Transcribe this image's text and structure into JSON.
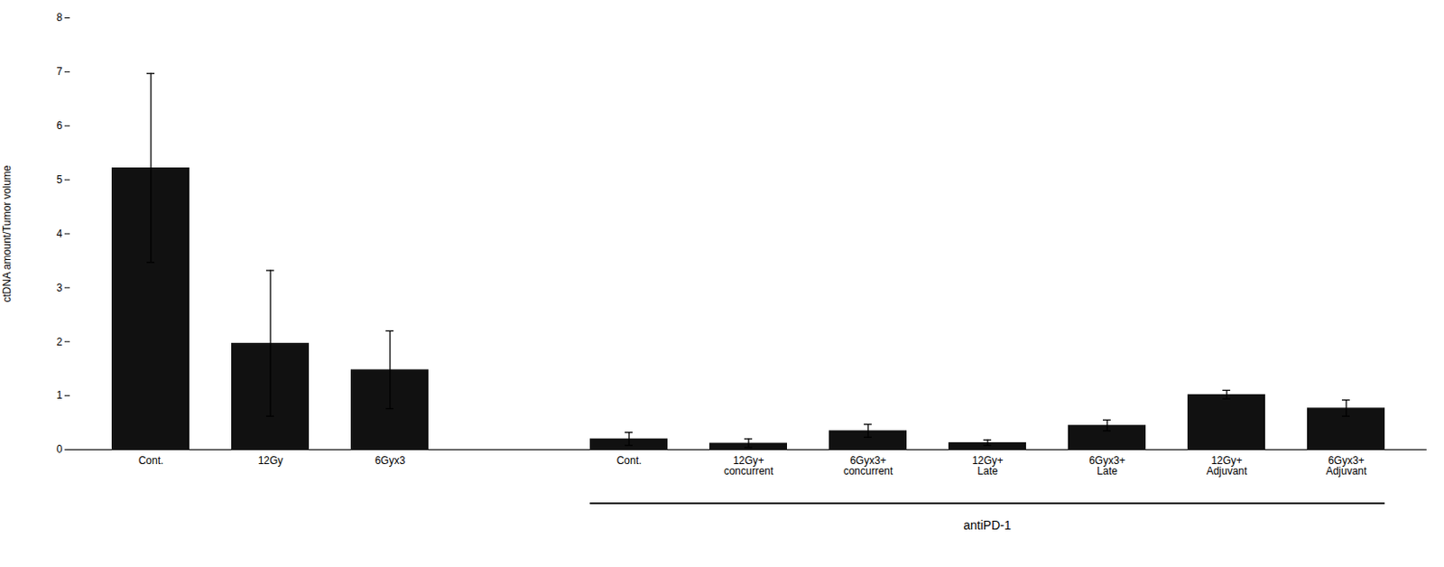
{
  "chart_data": {
    "type": "bar",
    "categories": [
      "Cont.",
      "12Gy",
      "6Gyx3",
      "Cont.",
      "12Gy+\nconcurrent",
      "6Gyx3+\nconcurrent",
      "12Gy+\nLate",
      "6Gyx3+\nLate",
      "12Gy+\nAdjuvant",
      "6Gyx3+\nAdjuvant"
    ],
    "values": [
      5.22,
      1.97,
      1.48,
      0.2,
      0.12,
      0.35,
      0.13,
      0.45,
      1.02,
      0.77
    ],
    "errors": [
      1.75,
      1.35,
      0.72,
      0.12,
      0.08,
      0.12,
      0.05,
      0.1,
      0.08,
      0.15
    ],
    "color": "#111111",
    "ylabel": "ctDNA amount/Tumor volume",
    "ylim": [
      0,
      8
    ],
    "yticks": [
      0,
      1,
      2,
      3,
      4,
      5,
      6,
      7,
      8
    ],
    "grid": false,
    "annotations": [
      {
        "text": "antiPD-1",
        "start_index": 3
      }
    ]
  }
}
